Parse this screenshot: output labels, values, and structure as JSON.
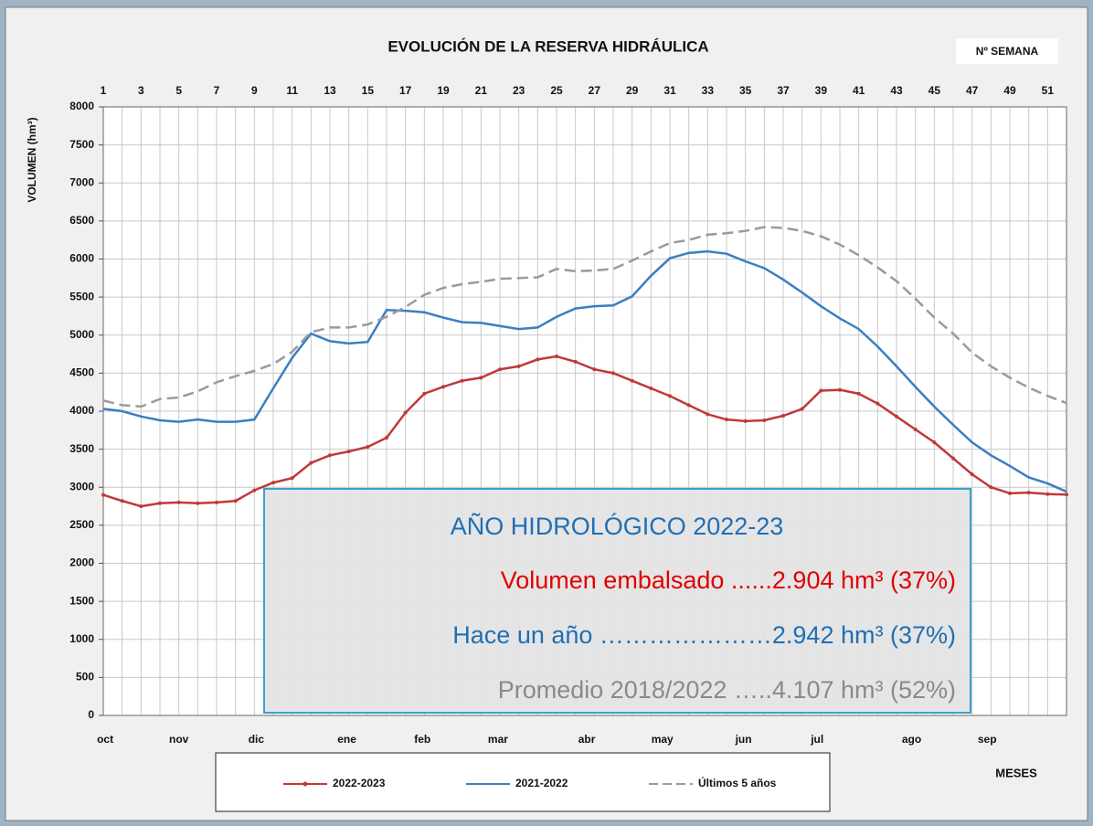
{
  "chart_data": {
    "type": "line",
    "title": "EVOLUCIÓN DE LA RESERVA HIDRÁULICA",
    "x_label_top": "Nº SEMANA",
    "x_label_bottom": "MESES",
    "y_label": "VOLUMEN (hm³)",
    "x": [
      1,
      2,
      3,
      4,
      5,
      6,
      7,
      8,
      9,
      10,
      11,
      12,
      13,
      14,
      15,
      16,
      17,
      18,
      19,
      20,
      21,
      22,
      23,
      24,
      25,
      26,
      27,
      28,
      29,
      30,
      31,
      32,
      33,
      34,
      35,
      36,
      37,
      38,
      39,
      40,
      41,
      42,
      43,
      44,
      45,
      46,
      47,
      48,
      49,
      50,
      51,
      52
    ],
    "xlim": [
      1,
      52
    ],
    "xticks": [
      1,
      3,
      5,
      7,
      9,
      11,
      13,
      15,
      17,
      19,
      21,
      23,
      25,
      27,
      29,
      31,
      33,
      35,
      37,
      39,
      41,
      43,
      45,
      47,
      49,
      51
    ],
    "month_ticks": [
      {
        "value": 1.1,
        "label": "oct"
      },
      {
        "value": 5,
        "label": "nov"
      },
      {
        "value": 9.1,
        "label": "dic"
      },
      {
        "value": 13.9,
        "label": "ene"
      },
      {
        "value": 17.9,
        "label": "feb"
      },
      {
        "value": 21.9,
        "label": "mar"
      },
      {
        "value": 26.6,
        "label": "abr"
      },
      {
        "value": 30.6,
        "label": "may"
      },
      {
        "value": 34.9,
        "label": "jun"
      },
      {
        "value": 38.8,
        "label": "jul"
      },
      {
        "value": 43.8,
        "label": "ago"
      },
      {
        "value": 47.8,
        "label": "sep"
      }
    ],
    "ylim": [
      0,
      8000
    ],
    "yticks": [
      0,
      500,
      1000,
      1500,
      2000,
      2500,
      3000,
      3500,
      4000,
      4500,
      5000,
      5500,
      6000,
      6500,
      7000,
      7500,
      8000
    ],
    "grid": true,
    "series": [
      {
        "name": "2022-2023",
        "color": "#c0393b",
        "style": "solid-markers",
        "values": [
          2900,
          2820,
          2750,
          2790,
          2800,
          2790,
          2800,
          2820,
          2960,
          3060,
          3120,
          3320,
          3420,
          3470,
          3530,
          3650,
          3980,
          4230,
          4320,
          4400,
          4440,
          4550,
          4590,
          4680,
          4720,
          4650,
          4550,
          4500,
          4400,
          4300,
          4200,
          4080,
          3960,
          3890,
          3870,
          3880,
          3940,
          4030,
          4270,
          4280,
          4230,
          4100,
          3930,
          3760,
          3590,
          3380,
          3170,
          3000,
          2920,
          2930,
          2910,
          2904
        ]
      },
      {
        "name": "2021-2022",
        "color": "#3a7fc1",
        "style": "solid",
        "values": [
          4030,
          4000,
          3930,
          3880,
          3860,
          3890,
          3860,
          3860,
          3890,
          4300,
          4700,
          5020,
          4920,
          4890,
          4910,
          5330,
          5320,
          5300,
          5230,
          5170,
          5160,
          5120,
          5080,
          5100,
          5240,
          5350,
          5380,
          5390,
          5510,
          5780,
          6010,
          6080,
          6100,
          6070,
          5970,
          5880,
          5730,
          5560,
          5380,
          5220,
          5080,
          4850,
          4590,
          4320,
          4060,
          3820,
          3590,
          3420,
          3280,
          3130,
          3050,
          2942
        ]
      },
      {
        "name": "Últimos 5 años",
        "color": "#9a9a9a",
        "style": "dashed",
        "values": [
          4140,
          4080,
          4060,
          4160,
          4180,
          4260,
          4380,
          4460,
          4530,
          4620,
          4780,
          5040,
          5100,
          5100,
          5140,
          5240,
          5370,
          5530,
          5620,
          5670,
          5700,
          5740,
          5750,
          5760,
          5870,
          5840,
          5850,
          5870,
          5980,
          6100,
          6210,
          6250,
          6320,
          6340,
          6370,
          6420,
          6410,
          6370,
          6300,
          6190,
          6050,
          5890,
          5710,
          5480,
          5230,
          5020,
          4770,
          4590,
          4440,
          4310,
          4200,
          4107
        ]
      }
    ],
    "annotation": {
      "title": "AÑO HIDROLÓGICO 2022-23",
      "lines": [
        {
          "text": "Volumen embalsado ......2.904 hm³ (37%)",
          "color": "#e00000"
        },
        {
          "text": "Hace un año …………………2.942 hm³ (37%)",
          "color": "#1f6fb5"
        },
        {
          "text": "Promedio 2018/2022 …..4.107 hm³ (52%)",
          "color": "#8a8a8a"
        }
      ]
    }
  }
}
